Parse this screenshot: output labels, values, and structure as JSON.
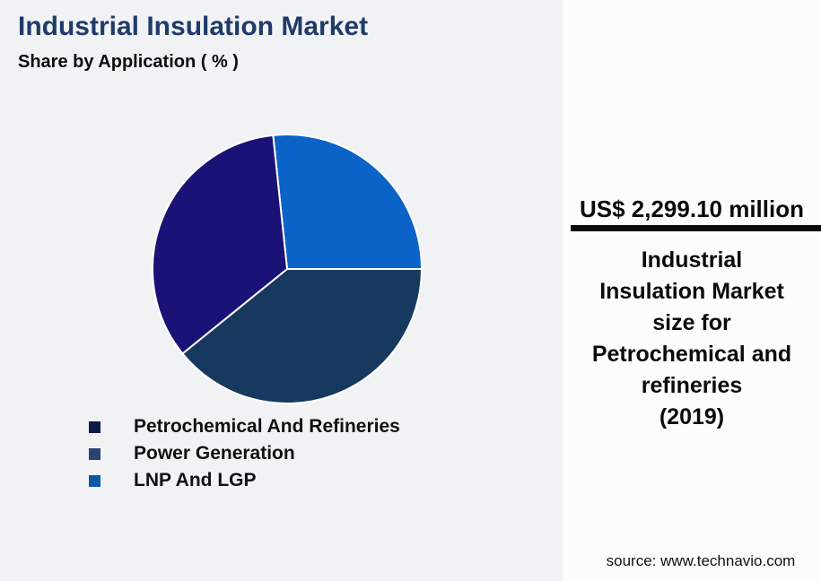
{
  "header": {
    "title": "Industrial Insulation Market",
    "subtitle": "Share by Application ( % )"
  },
  "chart_data": {
    "type": "pie",
    "title": "Industrial Insulation Market",
    "subtitle": "Share by Application ( % )",
    "unit": "%",
    "start_angle_deg": -6,
    "slices": [
      {
        "label": "LNP And LGP",
        "value": 26.7,
        "color": "#0b63c8"
      },
      {
        "label": "Petrochemical And Refineries",
        "value": 39.2,
        "color": "#17395f"
      },
      {
        "label": "Power Generation",
        "value": 34.2,
        "color": "#1a1276"
      }
    ],
    "legend_position": "bottom-left",
    "slice_border_color": "#ffffff"
  },
  "legend": {
    "items": [
      {
        "label": "Petrochemical And Refineries",
        "color": "#0a1c47"
      },
      {
        "label": "Power Generation",
        "color": "#2b4372"
      },
      {
        "label": "LNP And LGP",
        "color": "#0a57a6"
      }
    ]
  },
  "panel": {
    "market_value": "US$ 2,299.10 million",
    "description": "Industrial\nInsulation Market\nsize for\nPetrochemical and\nrefineries\n(2019)",
    "source": "source: www.technavio.com"
  },
  "colors": {
    "background_left": "#f1f2f4",
    "background_right": "#fcfcfd",
    "title_text": "#1f3b69",
    "body_text": "#0b0b0b",
    "divider_bar": "#0a0a0a"
  }
}
